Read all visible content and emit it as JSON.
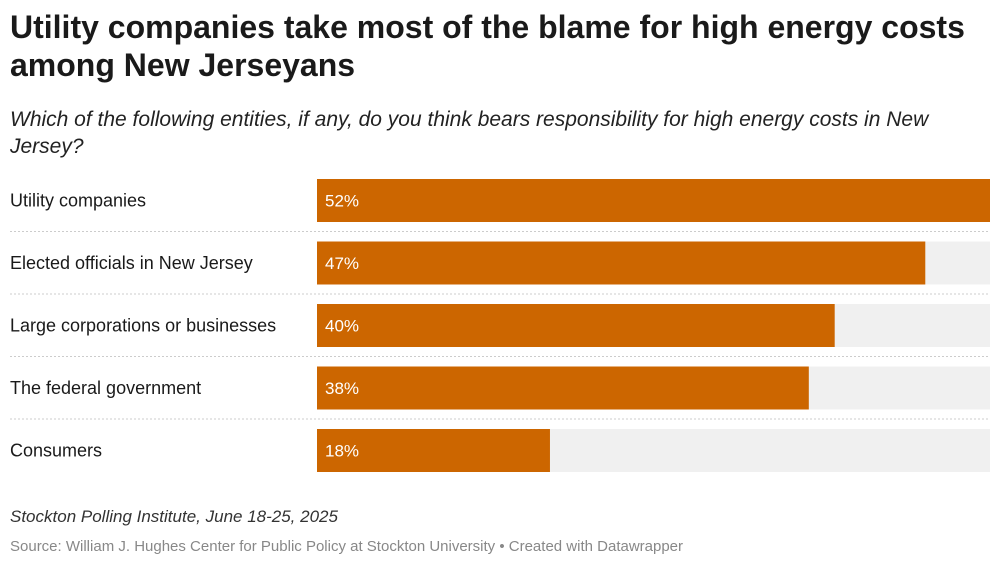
{
  "header": {
    "title": "Utility companies take most of the blame for high energy costs among New Jerseyans",
    "subtitle": "Which of the following entities, if any, do you think bears responsibility for high energy costs in New Jersey?"
  },
  "chart_data": {
    "type": "bar",
    "orientation": "horizontal",
    "title": "Utility companies take most of the blame for high energy costs among New Jerseyans",
    "subtitle": "Which of the following entities, if any, do you think bears responsibility for high energy costs in New Jersey?",
    "categories": [
      "Utility companies",
      "Elected officials in New Jersey",
      "Large corporations or businesses",
      "The federal government",
      "Consumers"
    ],
    "values": [
      52,
      47,
      40,
      38,
      18
    ],
    "value_labels": [
      "52%",
      "47%",
      "40%",
      "38%",
      "18%"
    ],
    "unit": "%",
    "xlim": [
      0,
      52
    ],
    "grid": false,
    "colors": {
      "bar": "#cc6600",
      "track": "#f0f0f0",
      "separator": "#cccccc"
    }
  },
  "footer": {
    "notes": "Stockton Polling Institute, June 18-25, 2025",
    "source": "Source: William J. Hughes Center for Public Policy at Stockton University • Created with Datawrapper"
  }
}
